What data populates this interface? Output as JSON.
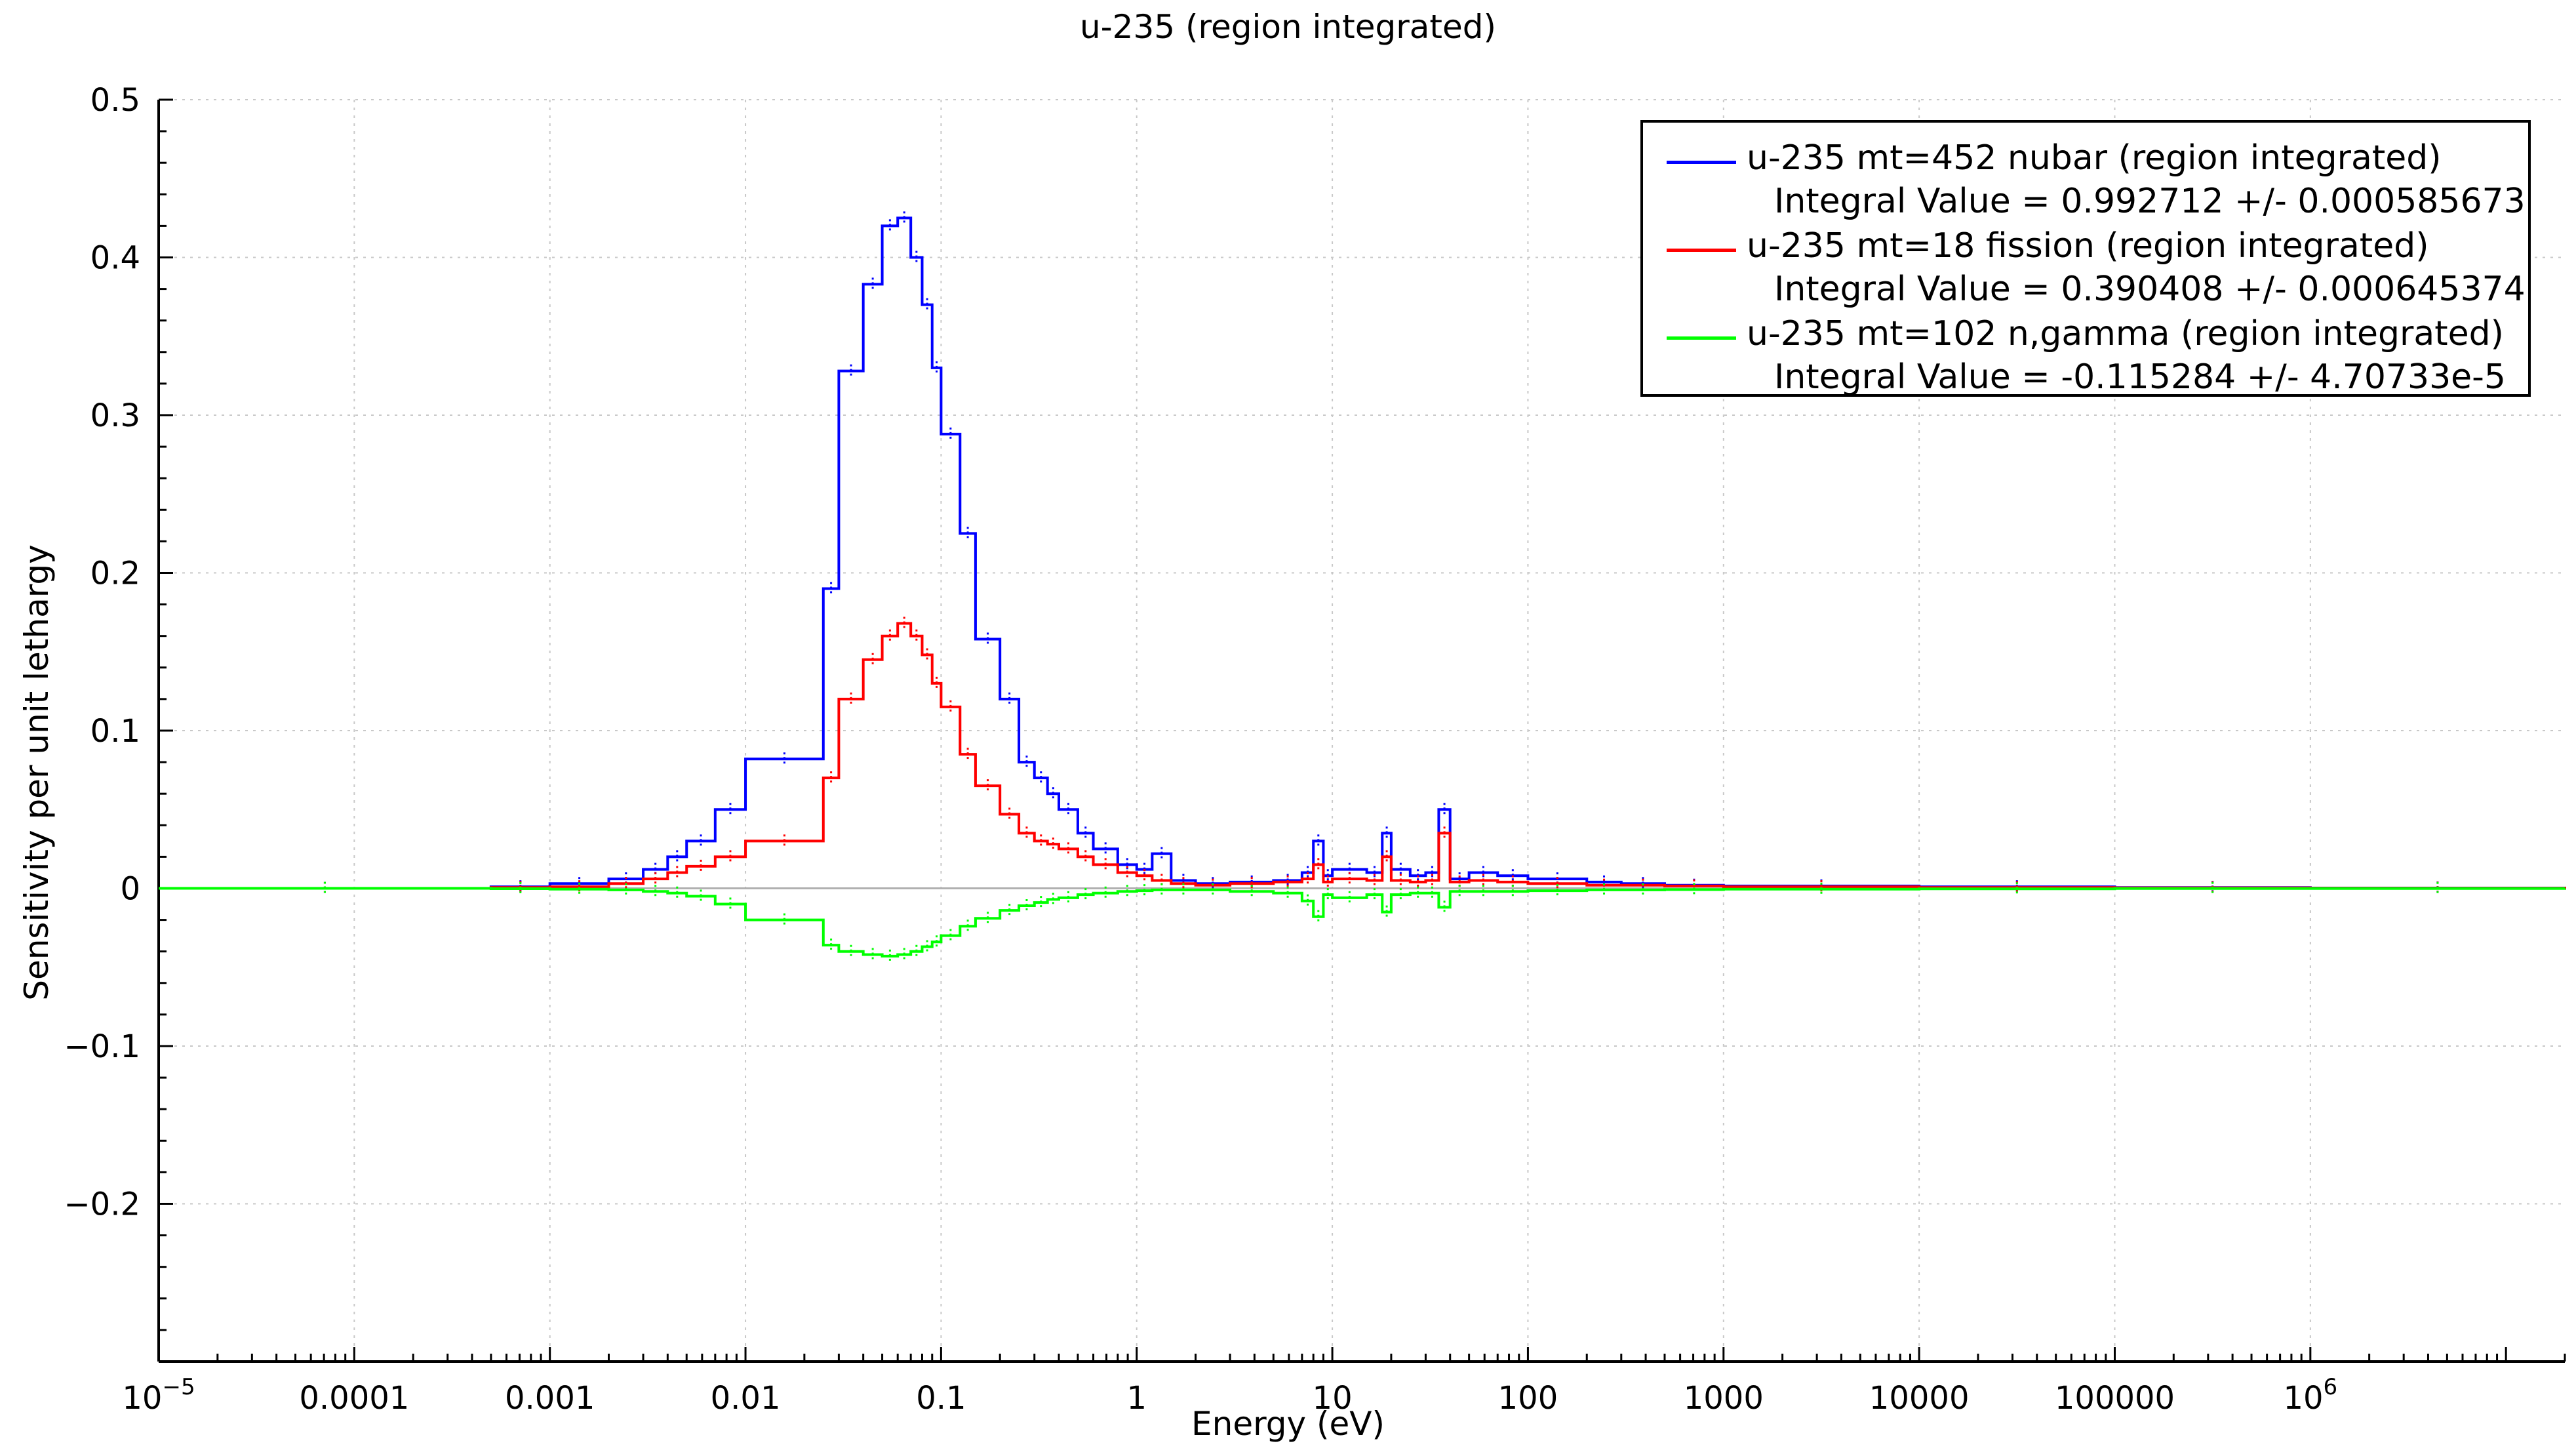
{
  "chart_data": {
    "type": "line",
    "title": "u-235 (region integrated)",
    "xlabel": "Energy (eV)",
    "ylabel": "Sensitivity per unit lethargy",
    "xscale": "log",
    "xlim": [
      1e-05,
      20000000
    ],
    "ylim": [
      -0.3,
      0.5
    ],
    "grid": true,
    "legend_position": "top-right",
    "x_ticks": [
      {
        "value": 1e-05,
        "label": "10",
        "sup": "−5"
      },
      {
        "value": 0.0001,
        "label": "0.0001",
        "sup": ""
      },
      {
        "value": 0.001,
        "label": "0.001",
        "sup": ""
      },
      {
        "value": 0.01,
        "label": "0.01",
        "sup": ""
      },
      {
        "value": 0.1,
        "label": "0.1",
        "sup": ""
      },
      {
        "value": 1,
        "label": "1",
        "sup": ""
      },
      {
        "value": 10,
        "label": "10",
        "sup": ""
      },
      {
        "value": 100,
        "label": "100",
        "sup": ""
      },
      {
        "value": 1000,
        "label": "1000",
        "sup": ""
      },
      {
        "value": 10000,
        "label": "10000",
        "sup": ""
      },
      {
        "value": 100000,
        "label": "100000",
        "sup": ""
      },
      {
        "value": 1000000,
        "label": "10",
        "sup": "6"
      }
    ],
    "y_ticks": [
      {
        "value": 0.5,
        "label": "0.5"
      },
      {
        "value": 0.4,
        "label": "0.4"
      },
      {
        "value": 0.3,
        "label": "0.3"
      },
      {
        "value": 0.2,
        "label": "0.2"
      },
      {
        "value": 0.1,
        "label": "0.1"
      },
      {
        "value": 0,
        "label": "0"
      },
      {
        "value": -0.1,
        "label": "−0.1"
      },
      {
        "value": -0.2,
        "label": "−0.2"
      }
    ],
    "series": [
      {
        "name": "u-235 mt=452 nubar (region integrated)",
        "integral": "Integral Value = 0.992712 +/- 0.000585673",
        "color": "#0000ff",
        "step": true,
        "x": [
          1e-05,
          0.0005,
          0.001,
          0.002,
          0.003,
          0.004,
          0.005,
          0.007,
          0.01,
          0.025,
          0.03,
          0.04,
          0.05,
          0.06,
          0.07,
          0.08,
          0.09,
          0.1,
          0.125,
          0.15,
          0.2,
          0.25,
          0.3,
          0.35,
          0.4,
          0.5,
          0.6,
          0.8,
          1.0,
          1.2,
          1.5,
          2,
          3,
          5,
          7,
          8,
          9,
          10,
          15,
          18,
          20,
          25,
          30,
          35,
          40,
          50,
          70,
          100,
          200,
          300,
          500,
          1000,
          10000,
          100000,
          1000000,
          20000000
        ],
        "y": [
          0,
          0.001,
          0.003,
          0.006,
          0.012,
          0.02,
          0.03,
          0.05,
          0.082,
          0.19,
          0.328,
          0.383,
          0.42,
          0.425,
          0.4,
          0.37,
          0.33,
          0.288,
          0.225,
          0.158,
          0.12,
          0.08,
          0.07,
          0.06,
          0.05,
          0.035,
          0.025,
          0.015,
          0.012,
          0.022,
          0.005,
          0.003,
          0.004,
          0.005,
          0.01,
          0.03,
          0.008,
          0.012,
          0.01,
          0.035,
          0.012,
          0.008,
          0.01,
          0.05,
          0.006,
          0.01,
          0.008,
          0.006,
          0.004,
          0.003,
          0.002,
          0.0015,
          0.001,
          0.0005,
          0.0002,
          0
        ]
      },
      {
        "name": "u-235 mt=18 fission (region integrated)",
        "integral": "Integral Value = 0.390408 +/- 0.000645374",
        "color": "#ff0000",
        "step": true,
        "x": [
          1e-05,
          0.0005,
          0.001,
          0.002,
          0.003,
          0.004,
          0.005,
          0.007,
          0.01,
          0.025,
          0.03,
          0.04,
          0.05,
          0.06,
          0.07,
          0.08,
          0.09,
          0.1,
          0.125,
          0.15,
          0.2,
          0.25,
          0.3,
          0.35,
          0.4,
          0.5,
          0.6,
          0.8,
          1.0,
          1.2,
          1.5,
          2,
          3,
          5,
          7,
          8,
          9,
          10,
          15,
          18,
          20,
          25,
          30,
          35,
          40,
          50,
          70,
          100,
          200,
          300,
          500,
          1000,
          10000,
          100000,
          1000000,
          20000000
        ],
        "y": [
          0,
          0.0005,
          0.001,
          0.003,
          0.006,
          0.01,
          0.014,
          0.02,
          0.03,
          0.07,
          0.12,
          0.145,
          0.16,
          0.168,
          0.16,
          0.148,
          0.13,
          0.115,
          0.085,
          0.065,
          0.047,
          0.035,
          0.03,
          0.028,
          0.025,
          0.02,
          0.015,
          0.01,
          0.008,
          0.005,
          0.003,
          0.002,
          0.003,
          0.004,
          0.006,
          0.015,
          0.004,
          0.006,
          0.005,
          0.02,
          0.005,
          0.004,
          0.005,
          0.035,
          0.004,
          0.005,
          0.004,
          0.003,
          0.002,
          0.002,
          0.0015,
          0.001,
          0.0005,
          0.0003,
          0.0001,
          0
        ]
      },
      {
        "name": "u-235 mt=102 n,gamma (region integrated)",
        "integral": "Integral Value = -0.115284 +/- 4.70733e-5",
        "color": "#00ff00",
        "step": true,
        "x": [
          1e-05,
          0.0005,
          0.001,
          0.002,
          0.003,
          0.004,
          0.005,
          0.007,
          0.01,
          0.025,
          0.03,
          0.04,
          0.05,
          0.06,
          0.07,
          0.08,
          0.09,
          0.1,
          0.125,
          0.15,
          0.2,
          0.25,
          0.3,
          0.35,
          0.4,
          0.5,
          0.6,
          0.8,
          1.0,
          1.2,
          1.5,
          2,
          3,
          5,
          7,
          8,
          9,
          10,
          15,
          18,
          20,
          25,
          30,
          35,
          40,
          50,
          70,
          100,
          200,
          300,
          500,
          1000,
          10000,
          100000,
          1000000,
          20000000
        ],
        "y": [
          0,
          -0.0002,
          -0.0005,
          -0.001,
          -0.002,
          -0.003,
          -0.005,
          -0.01,
          -0.02,
          -0.036,
          -0.04,
          -0.042,
          -0.043,
          -0.042,
          -0.04,
          -0.037,
          -0.034,
          -0.03,
          -0.024,
          -0.019,
          -0.014,
          -0.011,
          -0.009,
          -0.007,
          -0.006,
          -0.004,
          -0.003,
          -0.002,
          -0.0015,
          -0.001,
          -0.001,
          -0.001,
          -0.002,
          -0.003,
          -0.008,
          -0.018,
          -0.004,
          -0.006,
          -0.004,
          -0.015,
          -0.004,
          -0.003,
          -0.003,
          -0.012,
          -0.002,
          -0.002,
          -0.002,
          -0.0015,
          -0.001,
          -0.001,
          -0.0008,
          -0.0005,
          -0.0003,
          -0.0001,
          -0.0001,
          0
        ]
      }
    ]
  }
}
